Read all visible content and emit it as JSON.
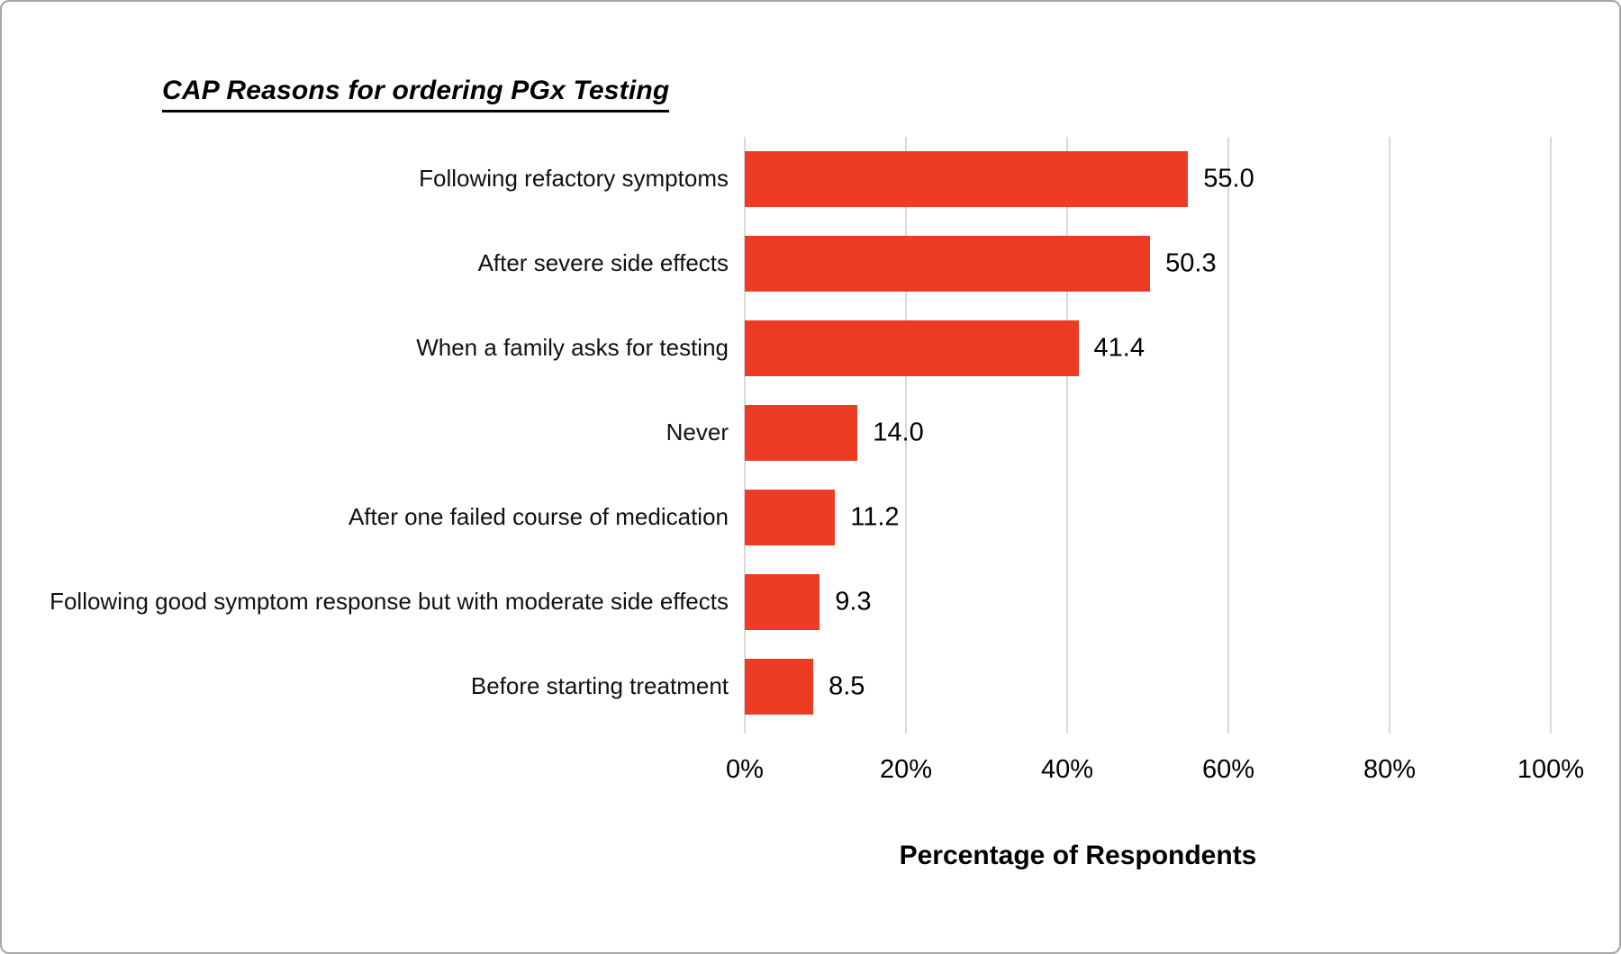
{
  "chart_data": {
    "type": "bar",
    "orientation": "horizontal",
    "title": "CAP Reasons for ordering PGx Testing",
    "categories": [
      "Following refactory symptoms",
      "After severe side effects",
      "When a family asks for testing",
      "Never",
      "After one failed course of medication",
      "Following good symptom response but with moderate side effects",
      "Before starting treatment"
    ],
    "values": [
      55.0,
      50.3,
      41.4,
      14.0,
      11.2,
      9.3,
      8.5
    ],
    "value_labels": [
      "55.0",
      "50.3",
      "41.4",
      "14.0",
      "11.2",
      "9.3",
      "8.5"
    ],
    "xlabel": "Percentage of Respondents",
    "ylabel": "",
    "xlim": [
      0,
      100
    ],
    "x_tick_values": [
      0,
      20,
      40,
      60,
      80,
      100
    ],
    "x_tick_labels": [
      "0%",
      "20%",
      "40%",
      "60%",
      "80%",
      "100%"
    ],
    "grid": true,
    "legend_position": "none",
    "colors": {
      "bar": "#ee3b24",
      "gridline": "#d9d9d9",
      "axis_line": "#d9d9d9",
      "text": "#000000",
      "frame_border": "#a6a6a6"
    }
  }
}
